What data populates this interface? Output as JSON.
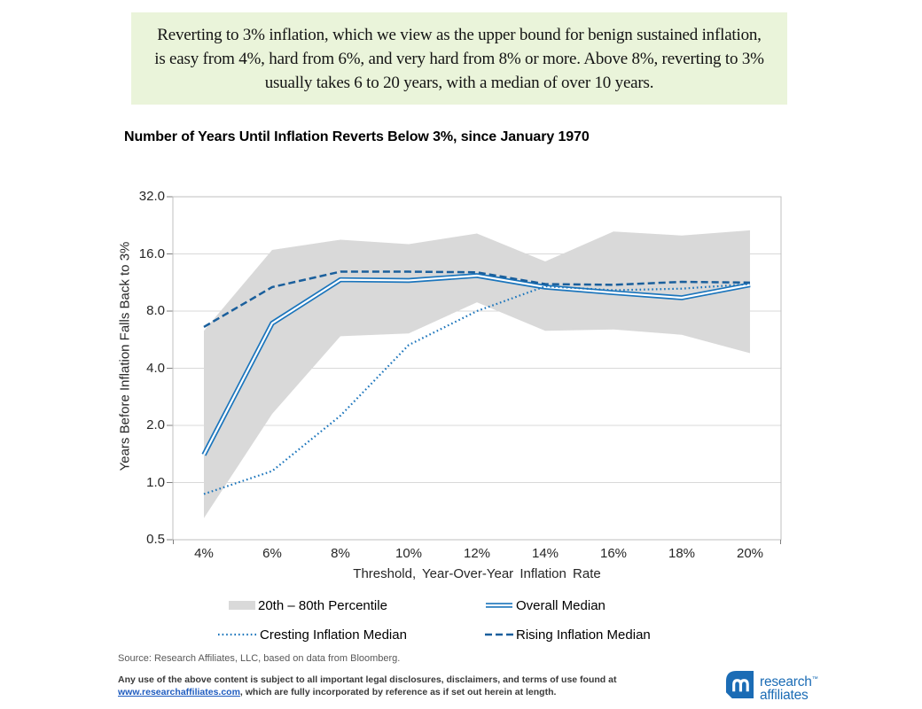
{
  "callout": {
    "text": "Reverting to 3% inflation, which we view as the upper bound for benign sustained inflation, is easy from 4%, hard from 6%, and very hard from 8% or more. Above 8%, reverting to 3% usually takes 6 to 20 years, with a median of over 10 years."
  },
  "chart_title": "Number of Years Until Inflation Reverts Below 3%, since January 1970",
  "chart_data": {
    "type": "line",
    "title": "Number of Years Until Inflation Reverts Below 3%, since January 1970",
    "categories": [
      "4%",
      "6%",
      "8%",
      "10%",
      "12%",
      "14%",
      "16%",
      "18%",
      "20%"
    ],
    "xlabel": "Threshold, Year-Over-Year Inflation Rate",
    "ylabel": "Years Before Inflation Falls Back to 3%",
    "y_scale": "log2",
    "ylim": [
      0.5,
      32
    ],
    "y_ticks": [
      32,
      16,
      8,
      4,
      2,
      1,
      0.5
    ],
    "y_tick_labels": [
      "32.0",
      "16.0",
      "8.0",
      "4.0",
      "2.0",
      "1.0",
      "0.5"
    ],
    "grid": "horizontal",
    "legend_position": "bottom",
    "colors": {
      "grid": "#d9d9d9",
      "border": "#bfbfbf",
      "tick": "#7f7f7f"
    },
    "series": [
      {
        "name": "20th – 80th Percentile",
        "type": "band",
        "color": "#d9d9d9",
        "lower": [
          0.65,
          2.3,
          5.9,
          6.1,
          8.9,
          6.3,
          6.4,
          6.0,
          4.8
        ],
        "upper": [
          6.3,
          16.8,
          19.0,
          18.0,
          20.5,
          14.6,
          21.0,
          20.0,
          21.3
        ]
      },
      {
        "name": "Overall Median",
        "type": "double-line",
        "color": "#1b75bc",
        "values": [
          1.4,
          6.9,
          11.7,
          11.6,
          12.3,
          10.7,
          10.0,
          9.4,
          11.0
        ]
      },
      {
        "name": "Cresting Inflation Median",
        "type": "dotted",
        "color": "#1b75bc",
        "values": [
          0.87,
          1.15,
          2.25,
          5.3,
          8.0,
          10.8,
          10.3,
          10.5,
          11.1
        ]
      },
      {
        "name": "Rising Inflation Median",
        "type": "dashed",
        "color": "#1a5f9c",
        "values": [
          6.6,
          10.7,
          12.9,
          12.9,
          12.8,
          11.1,
          11.0,
          11.4,
          11.3
        ]
      }
    ]
  },
  "source": "Source: Research Affiliates, LLC, based on data from Bloomberg.",
  "legal": {
    "prefix": "Any use of the above content is subject to all important legal disclosures, disclaimers, and terms of use found at ",
    "link": "www.researchaffiliates.com",
    "suffix": ", which are fully incorporated by reference as if set out herein at length."
  },
  "logo": {
    "line1": "research",
    "tm": "™",
    "line2": "affiliates",
    "color": "#1b6cb5"
  }
}
